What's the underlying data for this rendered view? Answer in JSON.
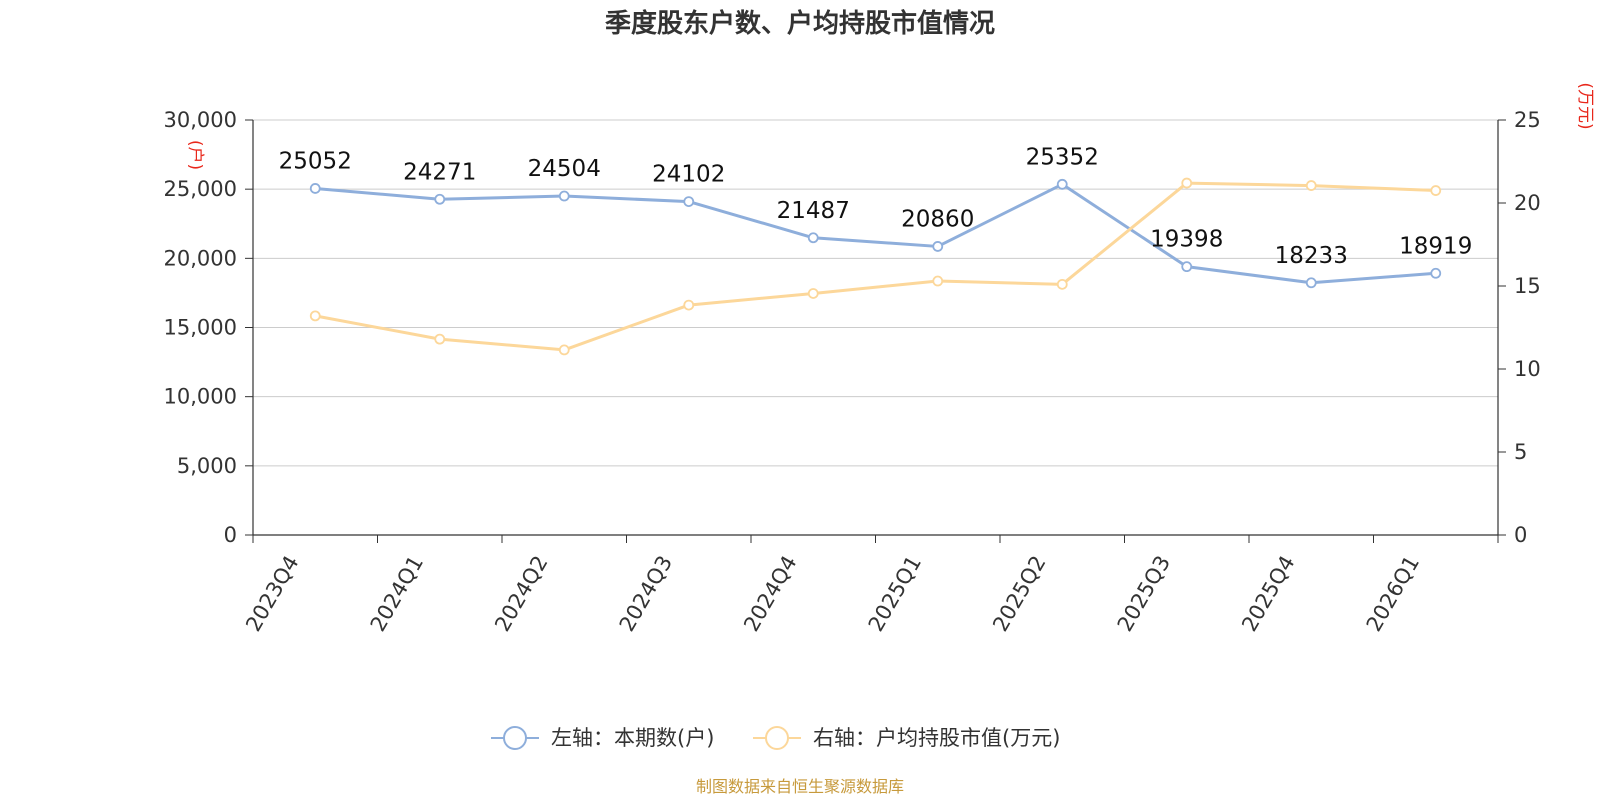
{
  "chart_data": {
    "type": "line",
    "title": "季度股东户数、户均持股市值情况",
    "categories": [
      "2023Q4",
      "2024Q1",
      "2024Q2",
      "2024Q3",
      "2024Q4",
      "2025Q1",
      "2025Q2",
      "2025Q3",
      "2025Q4",
      "2026Q1"
    ],
    "series": [
      {
        "name": "左轴：本期数(户)",
        "axis": "left",
        "color": "#8eaedb",
        "values": [
          25052,
          24271,
          24504,
          24102,
          21487,
          20860,
          25352,
          19398,
          18233,
          18919
        ],
        "data_labels": [
          "25052",
          "24271",
          "24504",
          "24102",
          "21487",
          "20860",
          "25352",
          "19398",
          "18233",
          "18919"
        ]
      },
      {
        "name": "右轴：户均持股市值(万元)",
        "axis": "right",
        "color": "#fcd79a",
        "values": [
          13.2,
          11.8,
          11.15,
          13.85,
          14.55,
          15.3,
          15.1,
          21.2,
          21.05,
          20.75
        ]
      }
    ],
    "left_axis": {
      "unit_label": "(户)",
      "ylim": [
        0,
        30000
      ],
      "ticks": [
        0,
        5000,
        10000,
        15000,
        20000,
        25000,
        30000
      ],
      "tick_labels": [
        "0",
        "5,000",
        "10,000",
        "15,000",
        "20,000",
        "25,000",
        "30,000"
      ]
    },
    "right_axis": {
      "unit_label": "(万元)",
      "ylim": [
        0,
        25
      ],
      "ticks": [
        0,
        5,
        10,
        15,
        20,
        25
      ],
      "tick_labels": [
        "0",
        "5",
        "10",
        "15",
        "20",
        "25"
      ]
    },
    "grid": true,
    "legend_position": "bottom-center"
  },
  "source": "制图数据来自恒生聚源数据库",
  "colors": {
    "axis": "#333333",
    "grid": "#cccccc",
    "unit_label": "#e8271b",
    "source": "#c79a3c"
  }
}
